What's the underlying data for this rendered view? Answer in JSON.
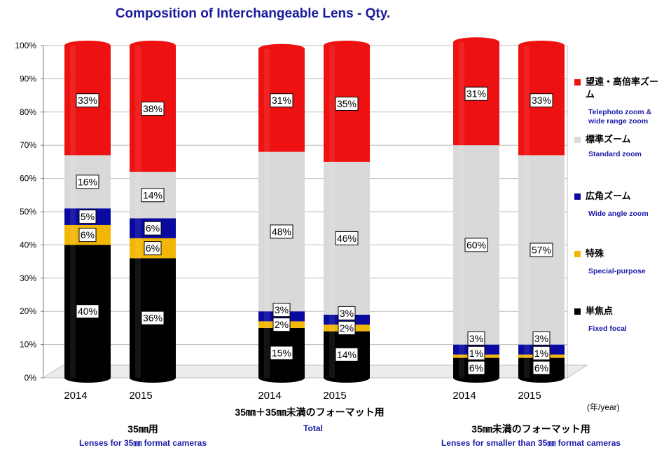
{
  "title": "Composition of Interchangeable Lens - Qty.",
  "unit_label": "(年/year)",
  "colors": {
    "telephoto": "#ee1111",
    "standard": "#d9d9d9",
    "wide": "#0a0aa0",
    "special": "#f2b705",
    "fixed": "#000000"
  },
  "chart_data": {
    "type": "bar",
    "stacked": true,
    "normalized": true,
    "ylim": [
      0,
      100
    ],
    "y_ticks": [
      "0%",
      "10%",
      "20%",
      "30%",
      "40%",
      "50%",
      "60%",
      "70%",
      "80%",
      "90%",
      "100%"
    ],
    "grid": true,
    "legend_position": "right",
    "categories": [
      "2014",
      "2015",
      "2014",
      "2015",
      "2014",
      "2015"
    ],
    "groups": [
      {
        "ja": "35㎜用",
        "en": "Lenses for 35㎜ format cameras"
      },
      {
        "ja": "35㎜＋35㎜未満のフォーマット用",
        "en": "Total"
      },
      {
        "ja": "35㎜未満のフォーマット用",
        "en": "Lenses for smaller than 35㎜ format cameras"
      }
    ],
    "series": [
      {
        "name_ja": "単焦点",
        "name_en": "Fixed focal",
        "values": [
          40,
          36,
          15,
          14,
          6,
          6
        ]
      },
      {
        "name_ja": "特殊",
        "name_en": "Special-purpose",
        "values": [
          6,
          6,
          2,
          2,
          1,
          1
        ]
      },
      {
        "name_ja": "広角ズーム",
        "name_en": "Wide angle zoom",
        "values": [
          5,
          6,
          3,
          3,
          3,
          3
        ]
      },
      {
        "name_ja": "標準ズーム",
        "name_en": "Standard zoom",
        "values": [
          16,
          14,
          48,
          46,
          60,
          57
        ]
      },
      {
        "name_ja": "望遠・高倍率ズーム",
        "name_en": "Telephoto zoom & wide range zoom",
        "values": [
          33,
          38,
          31,
          35,
          31,
          33
        ]
      }
    ]
  }
}
